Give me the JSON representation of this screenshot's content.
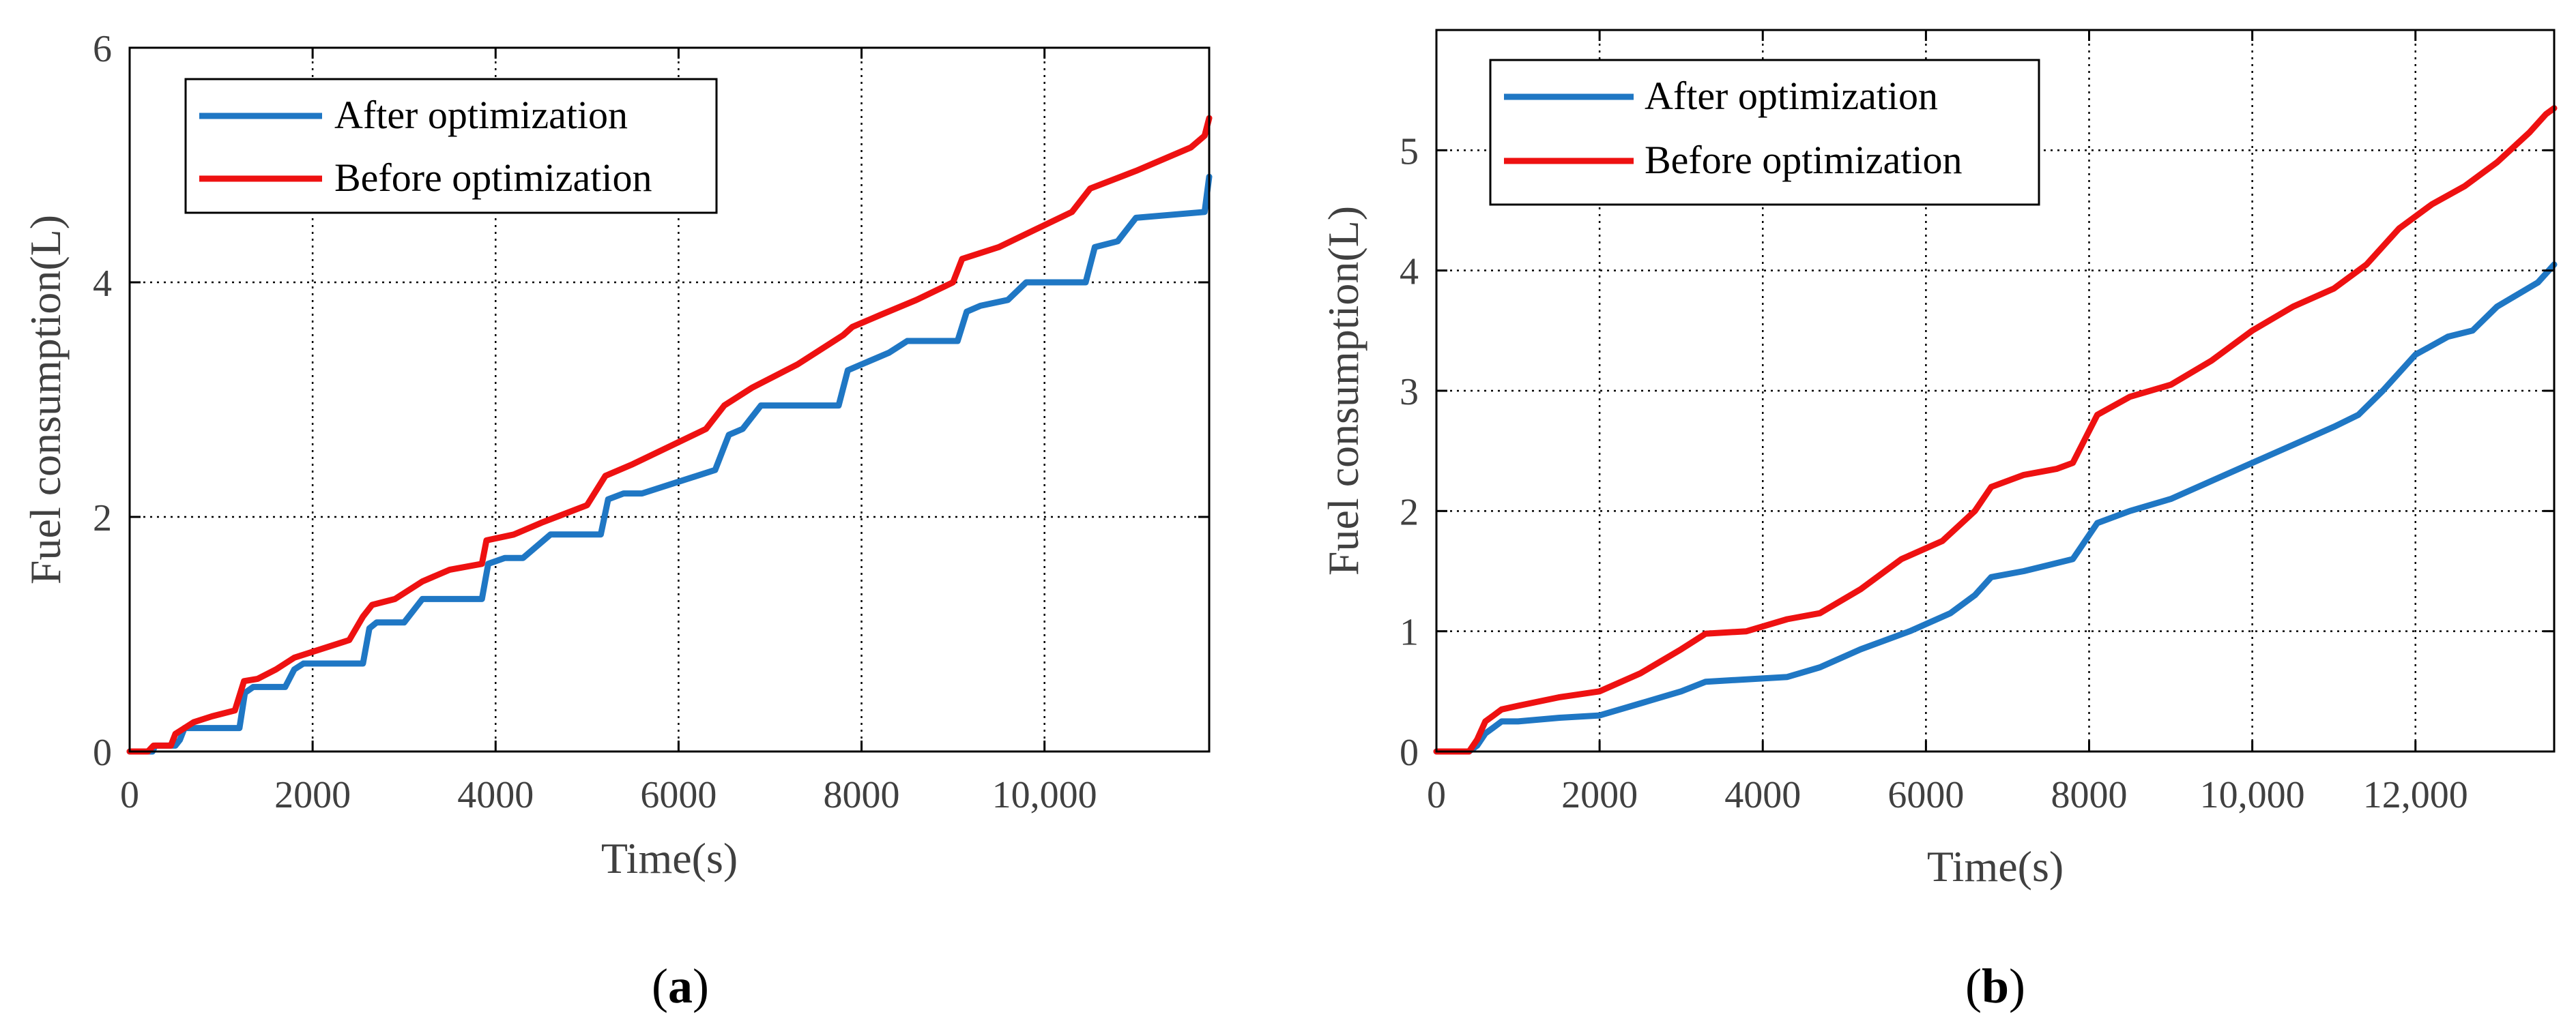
{
  "chart_data": [
    {
      "type": "line",
      "panel": "a",
      "caption_label": "a",
      "xlabel": "Time(s)",
      "ylabel": "Fuel consumption(L)",
      "xlim": [
        0,
        11800
      ],
      "ylim": [
        0,
        6
      ],
      "xticks": [
        0,
        2000,
        4000,
        6000,
        8000,
        10000
      ],
      "xtick_labels": [
        "0",
        "2000",
        "4000",
        "6000",
        "8000",
        "10,000"
      ],
      "yticks": [
        0,
        2,
        4,
        6
      ],
      "ytick_labels": [
        "0",
        "2",
        "4",
        "6"
      ],
      "grid": true,
      "legend_position": "top-left",
      "series": [
        {
          "name": "After optimization",
          "color": "#1f77c4",
          "x": [
            0,
            250,
            280,
            500,
            550,
            600,
            700,
            1200,
            1260,
            1350,
            1700,
            1800,
            1900,
            2550,
            2620,
            2700,
            3000,
            3100,
            3200,
            3850,
            3920,
            4100,
            4300,
            4600,
            5150,
            5230,
            5400,
            5600,
            6400,
            6500,
            6550,
            6700,
            6900,
            7750,
            7850,
            8000,
            8300,
            8500,
            9050,
            9150,
            9300,
            9600,
            9800,
            10450,
            10550,
            10800,
            11000,
            11750,
            11800
          ],
          "y": [
            0,
            0,
            0.05,
            0.05,
            0.1,
            0.2,
            0.2,
            0.2,
            0.5,
            0.55,
            0.55,
            0.7,
            0.75,
            0.75,
            1.05,
            1.1,
            1.1,
            1.2,
            1.3,
            1.3,
            1.6,
            1.65,
            1.65,
            1.85,
            1.85,
            2.15,
            2.2,
            2.2,
            2.4,
            2.6,
            2.7,
            2.75,
            2.95,
            2.95,
            3.25,
            3.3,
            3.4,
            3.5,
            3.5,
            3.75,
            3.8,
            3.85,
            4.0,
            4.0,
            4.3,
            4.35,
            4.55,
            4.6,
            4.9
          ]
        },
        {
          "name": "Before optimization",
          "color": "#ee1111",
          "x": [
            0,
            200,
            260,
            450,
            500,
            600,
            700,
            900,
            1150,
            1250,
            1400,
            1600,
            1800,
            2000,
            2400,
            2550,
            2650,
            2900,
            3200,
            3500,
            3850,
            3900,
            4200,
            4500,
            5000,
            5200,
            5500,
            5900,
            6300,
            6500,
            6800,
            7300,
            7800,
            7900,
            8200,
            8600,
            9000,
            9100,
            9500,
            9900,
            10300,
            10500,
            11000,
            11600,
            11750,
            11800
          ],
          "y": [
            0,
            0,
            0.05,
            0.05,
            0.15,
            0.2,
            0.25,
            0.3,
            0.35,
            0.6,
            0.62,
            0.7,
            0.8,
            0.85,
            0.95,
            1.15,
            1.25,
            1.3,
            1.45,
            1.55,
            1.6,
            1.8,
            1.85,
            1.95,
            2.1,
            2.35,
            2.45,
            2.6,
            2.75,
            2.95,
            3.1,
            3.3,
            3.55,
            3.62,
            3.72,
            3.85,
            4.0,
            4.2,
            4.3,
            4.45,
            4.6,
            4.8,
            4.95,
            5.15,
            5.25,
            5.4
          ]
        }
      ]
    },
    {
      "type": "line",
      "panel": "b",
      "caption_label": "b",
      "xlabel": "Time(s)",
      "ylabel": "Fuel consumption(L)",
      "xlim": [
        0,
        13700
      ],
      "ylim": [
        0,
        6
      ],
      "xticks": [
        0,
        2000,
        4000,
        6000,
        8000,
        10000,
        12000
      ],
      "xtick_labels": [
        "0",
        "2000",
        "4000",
        "6000",
        "8000",
        "10,000",
        "12,000"
      ],
      "yticks": [
        0,
        1,
        2,
        3,
        4,
        5
      ],
      "ytick_labels": [
        "0",
        "1",
        "2",
        "3",
        "4",
        "5"
      ],
      "grid": true,
      "legend_position": "top-left",
      "series": [
        {
          "name": "After optimization",
          "color": "#1f77c4",
          "x": [
            0,
            400,
            500,
            600,
            700,
            800,
            1000,
            1500,
            2000,
            2500,
            3000,
            3300,
            3800,
            4300,
            4700,
            5200,
            5800,
            6300,
            6600,
            6800,
            7200,
            7500,
            7800,
            8100,
            8500,
            9000,
            9500,
            10000,
            10500,
            11000,
            11300,
            11600,
            12000,
            12400,
            12700,
            13000,
            13500,
            13700
          ],
          "y": [
            0,
            0,
            0.05,
            0.15,
            0.2,
            0.25,
            0.25,
            0.28,
            0.3,
            0.4,
            0.5,
            0.58,
            0.6,
            0.62,
            0.7,
            0.85,
            1.0,
            1.15,
            1.3,
            1.45,
            1.5,
            1.55,
            1.6,
            1.9,
            2.0,
            2.1,
            2.25,
            2.4,
            2.55,
            2.7,
            2.8,
            3.0,
            3.3,
            3.45,
            3.5,
            3.7,
            3.9,
            4.05
          ]
        },
        {
          "name": "Before optimization",
          "color": "#ee1111",
          "x": [
            0,
            400,
            500,
            600,
            700,
            800,
            1000,
            1500,
            2000,
            2500,
            3000,
            3300,
            3800,
            4300,
            4700,
            5200,
            5700,
            6200,
            6600,
            6800,
            7200,
            7600,
            7800,
            8100,
            8500,
            9000,
            9500,
            10000,
            10500,
            11000,
            11400,
            11800,
            12200,
            12600,
            13000,
            13400,
            13600,
            13700
          ],
          "y": [
            0,
            0,
            0.1,
            0.25,
            0.3,
            0.35,
            0.38,
            0.45,
            0.5,
            0.65,
            0.85,
            0.98,
            1.0,
            1.1,
            1.15,
            1.35,
            1.6,
            1.75,
            2.0,
            2.2,
            2.3,
            2.35,
            2.4,
            2.8,
            2.95,
            3.05,
            3.25,
            3.5,
            3.7,
            3.85,
            4.05,
            4.35,
            4.55,
            4.7,
            4.9,
            5.15,
            5.3,
            5.35
          ]
        }
      ]
    }
  ]
}
